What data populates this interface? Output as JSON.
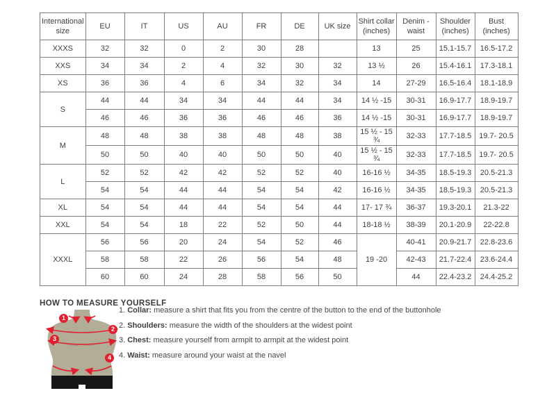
{
  "table": {
    "columns": [
      "International size",
      "EU",
      "IT",
      "US",
      "AU",
      "FR",
      "DE",
      "UK size",
      "Shirt collar (inches)",
      "Denim - waist",
      "Shoulder (inches)",
      "Bust (inches)"
    ],
    "rows": [
      {
        "cells": [
          {
            "t": "XXXS"
          },
          {
            "t": "32"
          },
          {
            "t": "32"
          },
          {
            "t": "0"
          },
          {
            "t": "2"
          },
          {
            "t": "30"
          },
          {
            "t": "28"
          },
          {
            "t": ""
          },
          {
            "t": "13"
          },
          {
            "t": "25"
          },
          {
            "t": "15.1-15.7"
          },
          {
            "t": "16.5-17.2"
          }
        ]
      },
      {
        "cells": [
          {
            "t": "XXS"
          },
          {
            "t": "34"
          },
          {
            "t": "34"
          },
          {
            "t": "2"
          },
          {
            "t": "4"
          },
          {
            "t": "32"
          },
          {
            "t": "30"
          },
          {
            "t": "32"
          },
          {
            "t": "13 ½"
          },
          {
            "t": "26"
          },
          {
            "t": "15.4-16.1"
          },
          {
            "t": "17.3-18.1"
          }
        ]
      },
      {
        "cells": [
          {
            "t": "XS"
          },
          {
            "t": "36"
          },
          {
            "t": "36"
          },
          {
            "t": "4"
          },
          {
            "t": "6"
          },
          {
            "t": "34"
          },
          {
            "t": "32"
          },
          {
            "t": "34"
          },
          {
            "t": "14"
          },
          {
            "t": "27-29"
          },
          {
            "t": "16.5-16.4"
          },
          {
            "t": "18.1-18.9"
          }
        ]
      },
      {
        "cells": [
          {
            "t": "S",
            "rs": 2
          },
          {
            "t": "44"
          },
          {
            "t": "44"
          },
          {
            "t": "34"
          },
          {
            "t": "34"
          },
          {
            "t": "44"
          },
          {
            "t": "44"
          },
          {
            "t": "34"
          },
          {
            "t": "14 ½ -15"
          },
          {
            "t": "30-31"
          },
          {
            "t": "16.9-17.7"
          },
          {
            "t": "18.9-19.7"
          }
        ]
      },
      {
        "cells": [
          {
            "t": "46"
          },
          {
            "t": "46"
          },
          {
            "t": "36"
          },
          {
            "t": "36"
          },
          {
            "t": "46"
          },
          {
            "t": "46"
          },
          {
            "t": "36"
          },
          {
            "t": "14 ½ -15"
          },
          {
            "t": "30-31"
          },
          {
            "t": "16.9-17.7"
          },
          {
            "t": "18.9-19.7"
          }
        ]
      },
      {
        "cells": [
          {
            "t": "M",
            "rs": 2
          },
          {
            "t": "48"
          },
          {
            "t": "48"
          },
          {
            "t": "38"
          },
          {
            "t": "38"
          },
          {
            "t": "48"
          },
          {
            "t": "48"
          },
          {
            "t": "38"
          },
          {
            "t": "15 ½ - 15 ¾"
          },
          {
            "t": "32-33"
          },
          {
            "t": "17.7-18.5"
          },
          {
            "t": "19.7- 20.5"
          }
        ]
      },
      {
        "cells": [
          {
            "t": "50"
          },
          {
            "t": "50"
          },
          {
            "t": "40"
          },
          {
            "t": "40"
          },
          {
            "t": "50"
          },
          {
            "t": "50"
          },
          {
            "t": "40"
          },
          {
            "t": "15 ½ - 15 ¾"
          },
          {
            "t": "32-33"
          },
          {
            "t": "17.7-18.5"
          },
          {
            "t": "19.7- 20.5"
          }
        ]
      },
      {
        "cells": [
          {
            "t": "L",
            "rs": 2
          },
          {
            "t": "52"
          },
          {
            "t": "52"
          },
          {
            "t": "42"
          },
          {
            "t": "42"
          },
          {
            "t": "52"
          },
          {
            "t": "52"
          },
          {
            "t": "40"
          },
          {
            "t": "16-16 ½"
          },
          {
            "t": "34-35"
          },
          {
            "t": "18.5-19.3"
          },
          {
            "t": "20.5-21.3"
          }
        ]
      },
      {
        "cells": [
          {
            "t": "54"
          },
          {
            "t": "54"
          },
          {
            "t": "44"
          },
          {
            "t": "44"
          },
          {
            "t": "54"
          },
          {
            "t": "54"
          },
          {
            "t": "42"
          },
          {
            "t": "16-16 ½"
          },
          {
            "t": "34-35"
          },
          {
            "t": "18.5-19.3"
          },
          {
            "t": "20.5-21.3"
          }
        ]
      },
      {
        "cells": [
          {
            "t": "XL"
          },
          {
            "t": "54"
          },
          {
            "t": "54"
          },
          {
            "t": "44"
          },
          {
            "t": "44"
          },
          {
            "t": "54"
          },
          {
            "t": "54"
          },
          {
            "t": "44"
          },
          {
            "t": "17- 17 ¾"
          },
          {
            "t": "36-37"
          },
          {
            "t": "19.3-20.1"
          },
          {
            "t": "21.3-22"
          }
        ]
      },
      {
        "cells": [
          {
            "t": "XXL"
          },
          {
            "t": "54"
          },
          {
            "t": "54"
          },
          {
            "t": "18"
          },
          {
            "t": "22"
          },
          {
            "t": "52"
          },
          {
            "t": "50"
          },
          {
            "t": "44"
          },
          {
            "t": "18-18 ½"
          },
          {
            "t": "38-39"
          },
          {
            "t": "20.1-20.9"
          },
          {
            "t": "22-22.8"
          }
        ]
      },
      {
        "cells": [
          {
            "t": "XXXL",
            "rs": 3
          },
          {
            "t": "56"
          },
          {
            "t": "56"
          },
          {
            "t": "20"
          },
          {
            "t": "24"
          },
          {
            "t": "54"
          },
          {
            "t": "52"
          },
          {
            "t": "46"
          },
          {
            "t": "19 -20",
            "rs": 3
          },
          {
            "t": "40-41"
          },
          {
            "t": "20.9-21.7"
          },
          {
            "t": "22.8-23.6"
          }
        ]
      },
      {
        "cells": [
          {
            "t": "58"
          },
          {
            "t": "58"
          },
          {
            "t": "22"
          },
          {
            "t": "26"
          },
          {
            "t": "56"
          },
          {
            "t": "54"
          },
          {
            "t": "48"
          },
          {
            "t": "42-43"
          },
          {
            "t": "21.7-22.4"
          },
          {
            "t": "23.6-24.4"
          }
        ]
      },
      {
        "cells": [
          {
            "t": "60"
          },
          {
            "t": "60"
          },
          {
            "t": "24"
          },
          {
            "t": "28"
          },
          {
            "t": "58"
          },
          {
            "t": "56"
          },
          {
            "t": "50"
          },
          {
            "t": "44"
          },
          {
            "t": "22.4-23.2"
          },
          {
            "t": "24.4-25.2"
          }
        ]
      }
    ]
  },
  "measure_section": {
    "heading": "HOW TO MEASURE YOURSELF",
    "items": [
      {
        "num": "1.",
        "label": "Collar:",
        "text": "measure a shirt that fits you from the centre of the button to the end of the buttonhole"
      },
      {
        "num": "2.",
        "label": "Shoulders:",
        "text": "measure the width of the shoulders at the widest point"
      },
      {
        "num": "3.",
        "label": "Chest:",
        "text": "measure yourself from armpit to armpit at the widest point"
      },
      {
        "num": "4.",
        "label": "Waist:",
        "text": "measure around your waist at the navel"
      }
    ],
    "badges": [
      "1",
      "2",
      "3",
      "4"
    ]
  },
  "colors": {
    "accent_red": "#e31e30",
    "mannequin_body": "#b1ad97",
    "shorts_black": "#171717",
    "table_border": "#7d7d7d",
    "text": "#3e3e3e"
  }
}
